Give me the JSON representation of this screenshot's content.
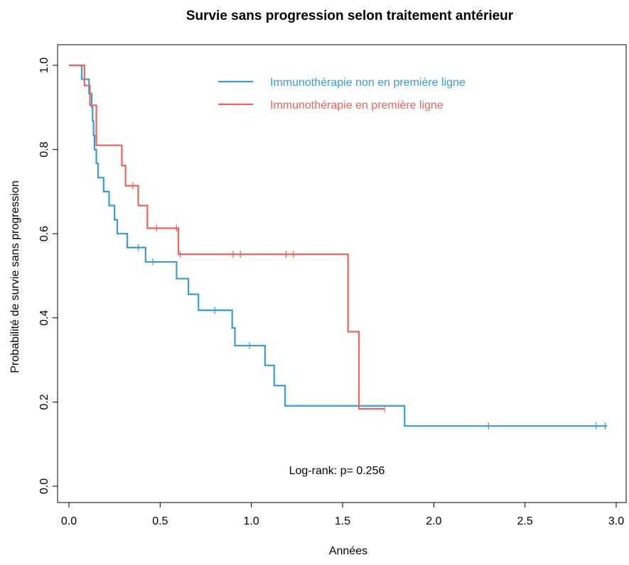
{
  "chart_data": {
    "type": "line",
    "subtype": "kaplan-meier-step",
    "title": "Survie sans progression selon traitement antérieur",
    "xlabel": "Années",
    "ylabel": "Probabilité de survie sans progression",
    "xlim": [
      0,
      3.0
    ],
    "ylim": [
      0,
      1.0
    ],
    "xticks": [
      "0.0",
      "0.5",
      "1.0",
      "1.5",
      "2.0",
      "2.5",
      "3.0"
    ],
    "yticks": [
      "0.0",
      "0.2",
      "0.4",
      "0.6",
      "0.8",
      "1.0"
    ],
    "grid": false,
    "legend_position": "top-right",
    "annotation": "Log-rank: p= 0.256",
    "series": [
      {
        "name": "Immunothérapie non en première ligne",
        "color": "#3a9bd5",
        "steps": [
          [
            0.0,
            1.0
          ],
          [
            0.07,
            0.967
          ],
          [
            0.11,
            0.933
          ],
          [
            0.125,
            0.9
          ],
          [
            0.13,
            0.867
          ],
          [
            0.135,
            0.833
          ],
          [
            0.14,
            0.8
          ],
          [
            0.15,
            0.767
          ],
          [
            0.16,
            0.733
          ],
          [
            0.19,
            0.7
          ],
          [
            0.22,
            0.667
          ],
          [
            0.25,
            0.633
          ],
          [
            0.265,
            0.6
          ],
          [
            0.32,
            0.567
          ],
          [
            0.42,
            0.533
          ],
          [
            0.59,
            0.493
          ],
          [
            0.655,
            0.456
          ],
          [
            0.71,
            0.418
          ],
          [
            0.895,
            0.376
          ],
          [
            0.91,
            0.334
          ],
          [
            1.075,
            0.287
          ],
          [
            1.125,
            0.239
          ],
          [
            1.185,
            0.191
          ],
          [
            1.84,
            0.143
          ],
          [
            2.95,
            0.143
          ]
        ],
        "censors": [
          [
            0.38,
            0.567
          ],
          [
            0.46,
            0.533
          ],
          [
            0.8,
            0.418
          ],
          [
            0.99,
            0.334
          ],
          [
            2.3,
            0.143
          ],
          [
            2.89,
            0.143
          ],
          [
            2.94,
            0.143
          ]
        ]
      },
      {
        "name": "Immunothérapie en première ligne",
        "color": "#e8665b",
        "steps": [
          [
            0.0,
            1.0
          ],
          [
            0.085,
            0.952
          ],
          [
            0.115,
            0.905
          ],
          [
            0.15,
            0.81
          ],
          [
            0.29,
            0.762
          ],
          [
            0.31,
            0.714
          ],
          [
            0.38,
            0.667
          ],
          [
            0.43,
            0.613
          ],
          [
            0.6,
            0.551
          ],
          [
            1.53,
            0.367
          ],
          [
            1.59,
            0.184
          ],
          [
            1.73,
            0.184
          ]
        ],
        "censors": [
          [
            0.35,
            0.714
          ],
          [
            0.48,
            0.613
          ],
          [
            0.59,
            0.613
          ],
          [
            0.61,
            0.551
          ],
          [
            0.9,
            0.551
          ],
          [
            0.94,
            0.551
          ],
          [
            1.19,
            0.551
          ],
          [
            1.23,
            0.551
          ],
          [
            1.73,
            0.184
          ]
        ]
      }
    ]
  }
}
